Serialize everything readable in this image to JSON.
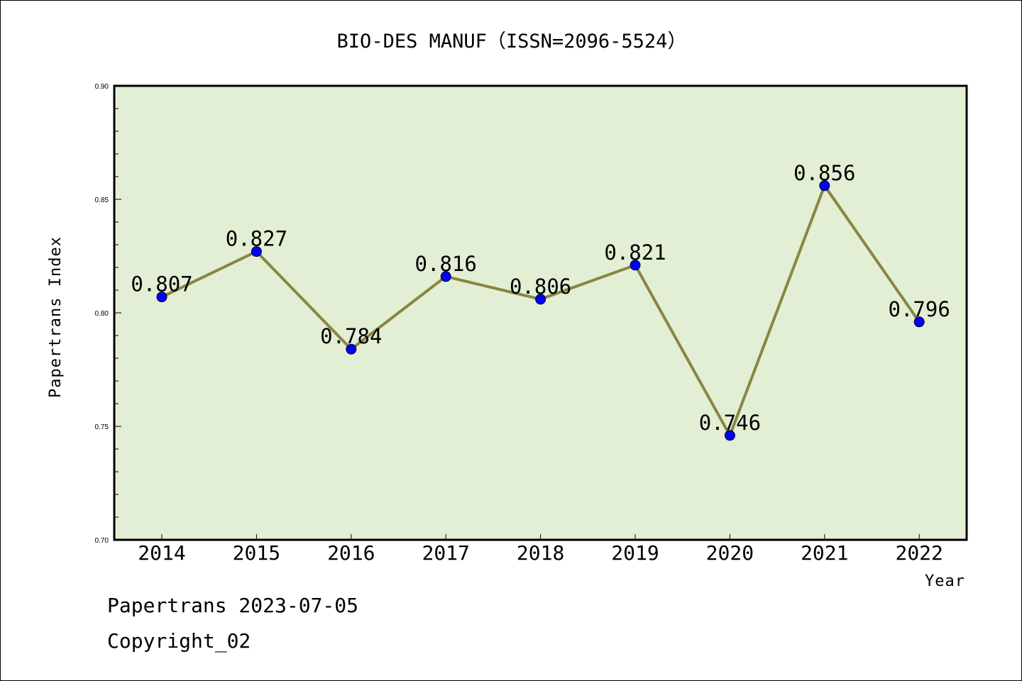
{
  "chart_data": {
    "type": "line",
    "title": "BIO-DES MANUF（ISSN=2096-5524）",
    "xlabel": "Year",
    "ylabel": "Papertrans Index",
    "categories": [
      "2014",
      "2015",
      "2016",
      "2017",
      "2018",
      "2019",
      "2020",
      "2021",
      "2022"
    ],
    "values": [
      0.807,
      0.827,
      0.784,
      0.816,
      0.806,
      0.821,
      0.746,
      0.856,
      0.796
    ],
    "data_labels": [
      "0.807",
      "0.827",
      "0.784",
      "0.816",
      "0.806",
      "0.821",
      "0.746",
      "0.856",
      "0.796"
    ],
    "ylim": [
      0.7,
      0.9
    ],
    "yticks": [
      0.7,
      0.75,
      0.8,
      0.85,
      0.9
    ],
    "ytick_labels": [
      "0.70",
      "0.75",
      "0.80",
      "0.85",
      "0.90"
    ],
    "y_minor_step": 0.01,
    "grid": false,
    "colors": {
      "plot_background": "#e2efd5",
      "line": "#8b8540",
      "marker": "#0000ff",
      "frame": "#000000"
    }
  },
  "footer": {
    "line1": "Papertrans 2023-07-05",
    "line2": "Copyright_02"
  }
}
